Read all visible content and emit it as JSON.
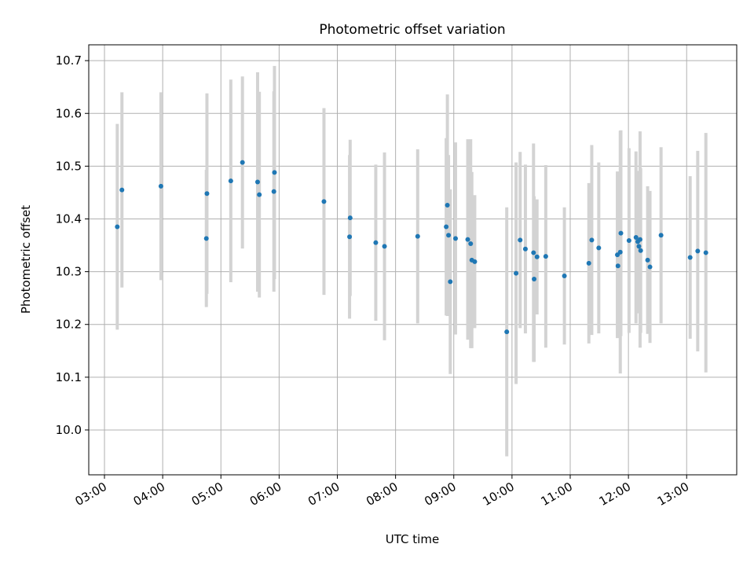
{
  "chart_data": {
    "type": "scatter",
    "title": "Photometric offset variation",
    "xlabel": "UTC time",
    "ylabel": "Photometric offset",
    "x_unit": "hours UTC",
    "xlim": [
      2.73,
      13.86
    ],
    "ylim": [
      9.915,
      10.73
    ],
    "x_ticks": [
      3,
      4,
      5,
      6,
      7,
      8,
      9,
      10,
      11,
      12,
      13
    ],
    "x_tick_labels": [
      "03:00",
      "04:00",
      "05:00",
      "06:00",
      "07:00",
      "08:00",
      "09:00",
      "10:00",
      "11:00",
      "12:00",
      "13:00"
    ],
    "y_ticks": [
      10.0,
      10.1,
      10.2,
      10.3,
      10.4,
      10.5,
      10.6,
      10.7
    ],
    "y_tick_labels": [
      "10.0",
      "10.1",
      "10.2",
      "10.3",
      "10.4",
      "10.5",
      "10.6",
      "10.7"
    ],
    "grid": true,
    "point_color": "#1f77b4",
    "errorbar_color": "#d3d3d3",
    "series": [
      {
        "x": [
          3.22,
          3.3,
          3.97,
          4.75,
          4.76,
          5.17,
          5.37,
          5.63,
          5.66,
          5.91,
          5.92,
          6.77,
          7.21,
          7.22,
          7.66,
          7.81,
          8.38,
          8.87,
          8.89,
          8.91,
          8.94,
          9.03,
          9.24,
          9.29,
          9.31,
          9.36,
          9.91,
          10.07,
          10.14,
          10.23,
          10.37,
          10.38,
          10.43,
          10.58,
          10.9,
          11.32,
          11.37,
          11.49,
          11.81,
          11.82,
          11.86,
          11.87,
          12.01,
          12.13,
          12.16,
          12.18,
          12.2,
          12.21,
          12.33,
          12.37,
          12.56,
          13.06,
          13.19,
          13.33
        ],
        "y": [
          10.385,
          10.455,
          10.462,
          10.363,
          10.448,
          10.472,
          10.507,
          10.47,
          10.446,
          10.452,
          10.488,
          10.433,
          10.366,
          10.402,
          10.355,
          10.348,
          10.367,
          10.385,
          10.426,
          10.369,
          10.281,
          10.363,
          10.361,
          10.353,
          10.322,
          10.319,
          10.186,
          10.297,
          10.36,
          10.343,
          10.336,
          10.286,
          10.328,
          10.329,
          10.292,
          10.316,
          10.36,
          10.345,
          10.332,
          10.311,
          10.337,
          10.373,
          10.359,
          10.365,
          10.357,
          10.348,
          10.361,
          10.34,
          10.322,
          10.309,
          10.369,
          10.327,
          10.339,
          10.336
        ],
        "yerr": [
          0.195,
          0.185,
          0.178,
          0.13,
          0.19,
          0.192,
          0.163,
          0.208,
          0.195,
          0.19,
          0.202,
          0.177,
          0.155,
          0.148,
          0.148,
          0.178,
          0.165,
          0.168,
          0.21,
          0.152,
          0.175,
          0.182,
          0.19,
          0.198,
          0.167,
          0.126,
          0.236,
          0.21,
          0.167,
          0.16,
          0.207,
          0.157,
          0.109,
          0.173,
          0.13,
          0.152,
          0.18,
          0.162,
          0.158,
          0.123,
          0.23,
          0.195,
          0.175,
          0.163,
          0.134,
          0.127,
          0.205,
          0.156,
          0.14,
          0.144,
          0.167,
          0.154,
          0.19,
          0.227
        ]
      }
    ]
  }
}
